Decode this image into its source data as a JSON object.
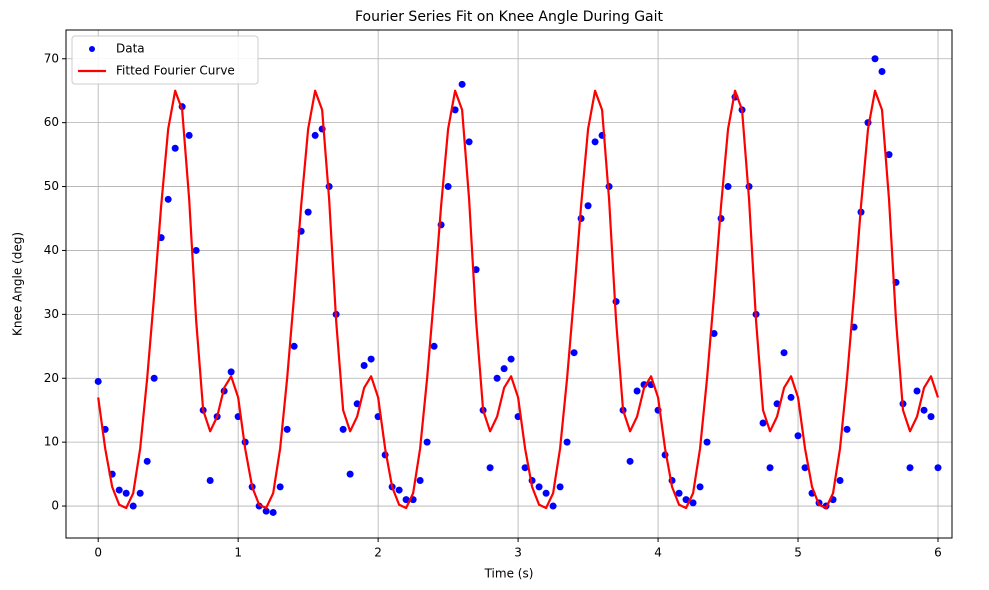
{
  "chart_data": {
    "type": "line",
    "title": "Fourier Series Fit on Knee Angle During Gait",
    "x_label": "Time (s)",
    "y_label": "Knee Angle (deg)",
    "x": [
      0,
      0.05,
      0.1,
      0.15,
      0.2,
      0.25,
      0.3,
      0.35,
      0.4,
      0.45,
      0.5,
      0.55,
      0.6,
      0.65,
      0.7,
      0.75,
      0.8,
      0.85,
      0.9,
      0.95,
      1,
      1.05,
      1.1,
      1.15,
      1.2,
      1.25,
      1.3,
      1.35,
      1.4,
      1.45,
      1.5,
      1.55,
      1.6,
      1.65,
      1.7,
      1.75,
      1.8,
      1.85,
      1.9,
      1.95,
      2,
      2.05,
      2.1,
      2.15,
      2.2,
      2.25,
      2.3,
      2.35,
      2.4,
      2.45,
      2.5,
      2.55,
      2.6,
      2.65,
      2.7,
      2.75,
      2.8,
      2.85,
      2.9,
      2.95,
      3,
      3.05,
      3.1,
      3.15,
      3.2,
      3.25,
      3.3,
      3.35,
      3.4,
      3.45,
      3.5,
      3.55,
      3.6,
      3.65,
      3.7,
      3.75,
      3.8,
      3.85,
      3.9,
      3.95,
      4,
      4.05,
      4.1,
      4.15,
      4.2,
      4.25,
      4.3,
      4.35,
      4.4,
      4.45,
      4.5,
      4.55,
      4.6,
      4.65,
      4.7,
      4.75,
      4.8,
      4.85,
      4.9,
      4.95,
      5,
      5.05,
      5.1,
      5.15,
      5.2,
      5.25,
      5.3,
      5.35,
      5.4,
      5.45,
      5.5,
      5.55,
      5.6,
      5.65,
      5.7,
      5.75,
      5.8,
      5.85,
      5.9,
      5.95,
      6
    ],
    "series": [
      {
        "name": "Data",
        "color": "#0000ff",
        "style": "dots",
        "values": [
          19.5,
          12,
          5,
          2.5,
          2,
          0,
          2,
          7,
          20,
          42,
          48,
          56,
          62.5,
          58,
          40,
          15,
          4,
          14,
          18,
          21,
          14,
          10,
          3,
          0,
          -0.8,
          -1,
          3,
          12,
          25,
          43,
          46,
          58,
          59,
          50,
          30,
          12,
          5,
          16,
          22,
          23,
          14,
          8,
          3,
          2.5,
          1,
          1,
          4,
          10,
          25,
          44,
          50,
          62,
          66,
          57,
          37,
          15,
          6,
          20,
          21.5,
          23,
          14,
          6,
          4,
          3,
          2,
          0,
          3,
          10,
          24,
          45,
          47,
          57,
          58,
          50,
          32,
          15,
          7,
          18,
          19,
          19,
          15,
          8,
          4,
          2,
          1,
          0.5,
          3,
          10,
          27,
          45,
          50,
          64,
          62,
          50,
          30,
          13,
          6,
          16,
          24,
          17,
          11,
          6,
          2,
          0.5,
          0,
          1,
          4,
          12,
          28,
          46,
          60,
          70,
          68,
          55,
          35,
          16,
          6,
          18,
          15,
          14,
          6
        ]
      },
      {
        "name": "Fitted Fourier Curve",
        "color": "#ff0000",
        "style": "line",
        "values": [
          17,
          9,
          3,
          0.2,
          -0.3,
          2,
          9,
          20,
          33,
          47,
          59,
          65,
          62,
          48,
          29,
          15,
          11.7,
          14,
          18.5,
          20.3,
          17,
          9,
          3,
          0.2,
          -0.3,
          2,
          9,
          20,
          33,
          47,
          59,
          65,
          62,
          48,
          29,
          15,
          11.7,
          14,
          18.5,
          20.3,
          17,
          9,
          3,
          0.2,
          -0.3,
          2,
          9,
          20,
          33,
          47,
          59,
          65,
          62,
          48,
          29,
          15,
          11.7,
          14,
          18.5,
          20.3,
          17,
          9,
          3,
          0.2,
          -0.3,
          2,
          9,
          20,
          33,
          47,
          59,
          65,
          62,
          48,
          29,
          15,
          11.7,
          14,
          18.5,
          20.3,
          17,
          9,
          3,
          0.2,
          -0.3,
          2,
          9,
          20,
          33,
          47,
          59,
          65,
          62,
          48,
          29,
          15,
          11.7,
          14,
          18.5,
          20.3,
          17,
          9,
          3,
          0.2,
          -0.3,
          2,
          9,
          20,
          33,
          47,
          59,
          65,
          62,
          48,
          29,
          15,
          11.7,
          14,
          18.5,
          20.3,
          17
        ]
      }
    ],
    "xlim": [
      -0.23,
      6.1
    ],
    "ylim": [
      -5,
      74.5
    ],
    "xticks": [
      0,
      1,
      2,
      3,
      4,
      5,
      6
    ],
    "yticks": [
      0,
      10,
      20,
      30,
      40,
      50,
      60,
      70
    ],
    "grid": true,
    "legend": "upper-left"
  }
}
